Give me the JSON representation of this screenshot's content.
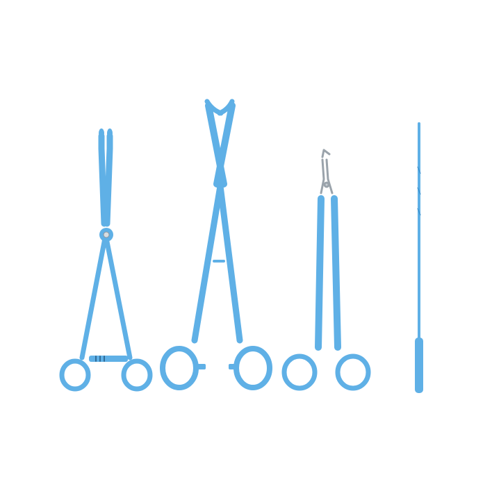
{
  "scene": {
    "background": "#ffffff",
    "instrument_color": "#5fb0e6",
    "instrument_edge": "#3f95d1",
    "metal_color": "#9aa3ab",
    "objects": [
      {
        "name": "sponge-forceps",
        "icon": "forceps-icon"
      },
      {
        "name": "tenaculum-forceps",
        "icon": "forceps-icon"
      },
      {
        "name": "biopsy-punch-forceps",
        "icon": "forceps-icon"
      },
      {
        "name": "endometrial-sampler",
        "icon": "sampler-icon"
      }
    ]
  }
}
